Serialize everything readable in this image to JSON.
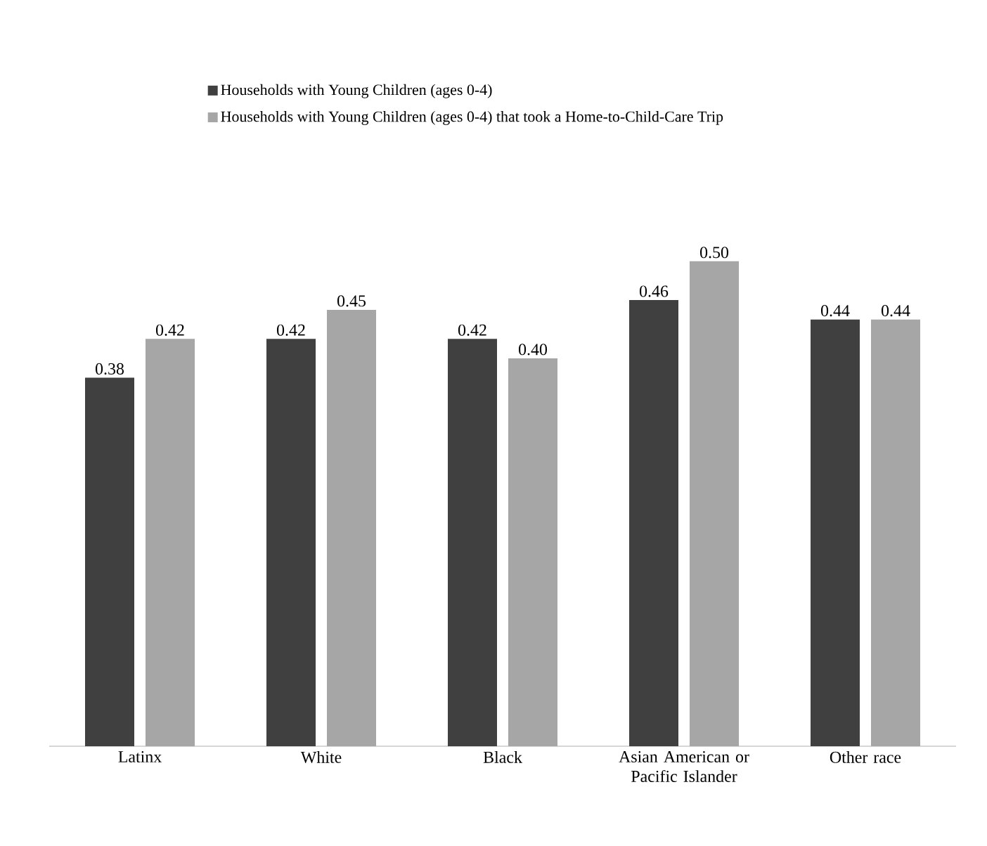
{
  "chart_data": {
    "type": "bar",
    "categories": [
      "Latinx",
      "White",
      "Black",
      "Asian American or Pacific Islander",
      "Other race"
    ],
    "series": [
      {
        "name": "Households with Young Children (ages 0-4)",
        "color": "#404040",
        "values": [
          0.38,
          0.42,
          0.42,
          0.46,
          0.44
        ],
        "value_labels": [
          "0.38",
          "0.42",
          "0.42",
          "0.46",
          "0.44"
        ]
      },
      {
        "name": "Households with Young Children (ages 0-4) that took a Home-to-Child-Care Trip",
        "color": "#a6a6a6",
        "values": [
          0.42,
          0.45,
          0.4,
          0.5,
          0.44
        ],
        "value_labels": [
          "0.42",
          "0.45",
          "0.40",
          "0.50",
          "0.44"
        ]
      }
    ],
    "legend": "top"
  }
}
